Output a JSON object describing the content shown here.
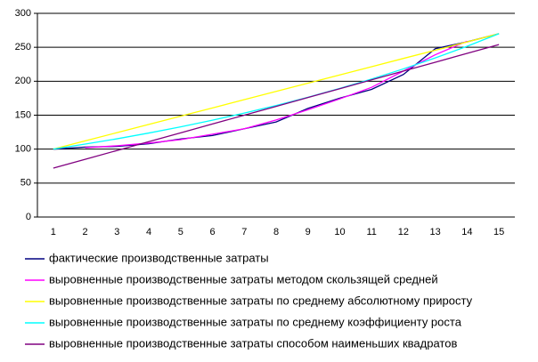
{
  "chart_data": {
    "type": "line",
    "x": [
      1,
      2,
      3,
      4,
      5,
      6,
      7,
      8,
      9,
      10,
      11,
      12,
      13,
      14,
      15
    ],
    "xlim": [
      0.5,
      15.5
    ],
    "ylim": [
      0,
      300
    ],
    "yticks": [
      0,
      50,
      100,
      150,
      200,
      250,
      300
    ],
    "grid": true,
    "series": [
      {
        "name": "фактические производственные затраты",
        "color": "#000080",
        "values": [
          100,
          103,
          104,
          108,
          115,
          120,
          130,
          140,
          160,
          175,
          188,
          210,
          248,
          258,
          270
        ]
      },
      {
        "name": "выровненные производственные затраты методом скользящей средней",
        "color": "#ff00ff",
        "values": [
          null,
          102,
          105,
          109,
          114,
          122,
          130,
          143,
          158,
          174,
          191,
          215,
          239,
          259,
          null
        ]
      },
      {
        "name": "выровненные производственные затраты по среднему абсолютному приросту",
        "color": "#ffff00",
        "values": [
          100,
          112.1,
          124.3,
          136.4,
          148.6,
          160.7,
          172.9,
          185,
          197.1,
          209.3,
          221.4,
          233.6,
          245.7,
          257.9,
          270
        ]
      },
      {
        "name": "выровненные производственные затраты по среднему коэффициенту роста",
        "color": "#00ffff",
        "values": [
          100,
          107.4,
          115.2,
          123.7,
          132.8,
          142.6,
          153.1,
          164.3,
          176.4,
          189.4,
          203.3,
          218.2,
          234.3,
          251.5,
          270
        ]
      },
      {
        "name": "выровненные производственные затраты способом наименьших квадратов",
        "color": "#800080",
        "values": [
          72,
          85,
          98,
          111,
          124,
          137,
          150,
          163,
          176,
          189,
          202,
          215,
          228,
          241,
          254
        ]
      }
    ]
  }
}
